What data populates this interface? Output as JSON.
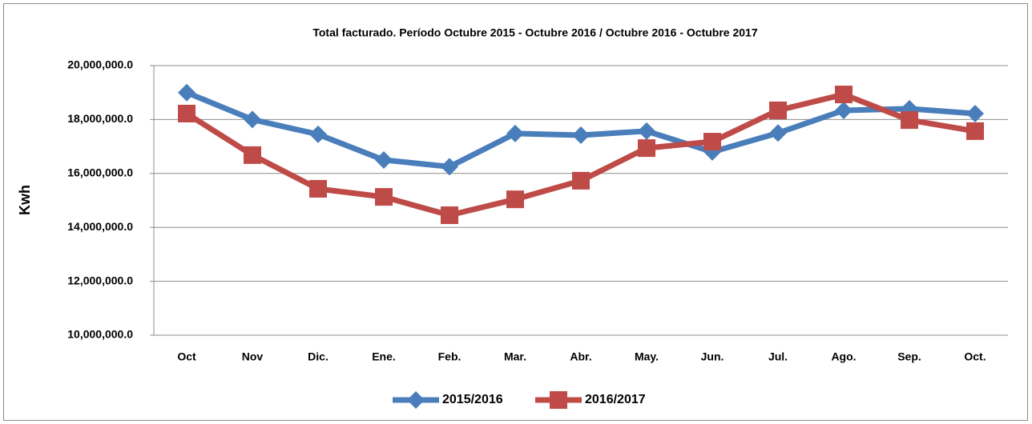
{
  "chart_data": {
    "type": "line",
    "title": "Total facturado. Período Octubre 2015 - Octubre 2016 / Octubre 2016 - Octubre 2017",
    "y_label": "Kwh",
    "categories": [
      "Oct",
      "Nov",
      "Dic.",
      "Ene.",
      "Feb.",
      "Mar.",
      "Abr.",
      "May.",
      "Jun.",
      "Jul.",
      "Ago.",
      "Sep.",
      "Oct."
    ],
    "series": [
      {
        "name": "2015/2016",
        "color": "#4a7ebb",
        "marker": "diamond",
        "values": [
          19000000,
          18000000,
          17450000,
          16500000,
          16250000,
          17480000,
          17420000,
          17570000,
          16800000,
          17500000,
          18340000,
          18400000,
          18220000
        ]
      },
      {
        "name": "2016/2017",
        "color": "#be4b48",
        "marker": "square",
        "values": [
          18220000,
          16680000,
          15430000,
          15130000,
          14450000,
          15040000,
          15730000,
          16940000,
          17180000,
          18340000,
          18930000,
          17980000,
          17570000
        ]
      }
    ],
    "ylim": [
      10000000,
      20000000
    ],
    "yticks": [
      {
        "value": 10000000,
        "label": "10,000,000.0"
      },
      {
        "value": 12000000,
        "label": "12,000,000.0"
      },
      {
        "value": 14000000,
        "label": "14,000,000.0"
      },
      {
        "value": 16000000,
        "label": "16,000,000.0"
      },
      {
        "value": 18000000,
        "label": "18,000,000.0"
      },
      {
        "value": 20000000,
        "label": "20,000,000.0"
      }
    ],
    "grid": true,
    "legend": "bottom"
  }
}
